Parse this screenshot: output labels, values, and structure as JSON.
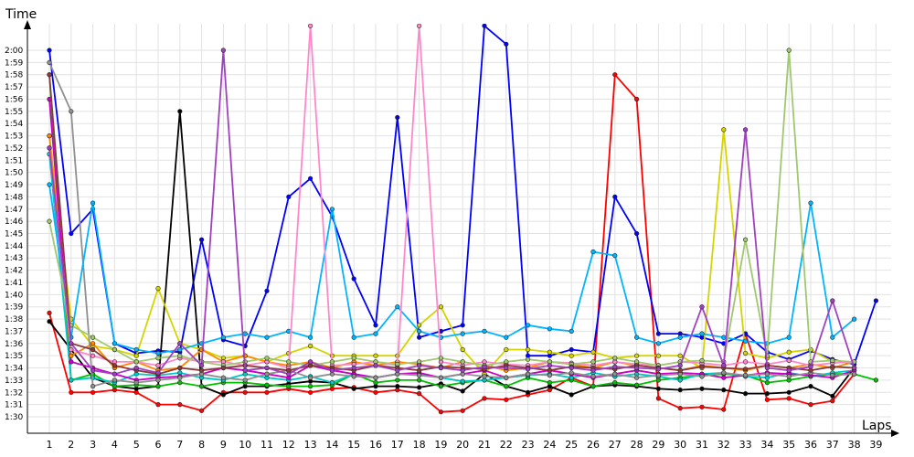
{
  "chart_data": {
    "type": "line",
    "ylabel": "Time",
    "xlabel": "Laps",
    "x": [
      1,
      2,
      3,
      4,
      5,
      6,
      7,
      8,
      9,
      10,
      11,
      12,
      13,
      14,
      15,
      16,
      17,
      18,
      19,
      20,
      21,
      22,
      23,
      24,
      25,
      26,
      27,
      28,
      29,
      30,
      31,
      32,
      33,
      34,
      35,
      36,
      37,
      38,
      39
    ],
    "y_ticks": [
      "1:30",
      "1:31",
      "1:32",
      "1:33",
      "1:34",
      "1:35",
      "1:36",
      "1:37",
      "1:38",
      "1:39",
      "1:40",
      "1:41",
      "1:42",
      "1:43",
      "1:44",
      "1:45",
      "1:46",
      "1:47",
      "1:48",
      "1:49",
      "1:50",
      "1:51",
      "1:52",
      "1:53",
      "1:54",
      "1:55",
      "1:56",
      "1:57",
      "1:58",
      "1:59",
      "2:00"
    ],
    "ylim_seconds": [
      89,
      121
    ],
    "grid": true,
    "series": [
      {
        "color": "#ff0000",
        "values": [
          98.5,
          92,
          92,
          92.2,
          92,
          91,
          91,
          90.5,
          92,
          92,
          92,
          92.3,
          92,
          92.3,
          92.4,
          92,
          92.2,
          91.9,
          90.4,
          90.5,
          91.5,
          91.4,
          91.8,
          92.2,
          93.2,
          92.5,
          118,
          116,
          91.5,
          90.7,
          90.8,
          90.6,
          96.8,
          91.4,
          91.5,
          91,
          91.3,
          93.5,
          null
        ]
      },
      {
        "color": "#0000ff",
        "values": [
          120,
          105,
          107,
          96,
          95.2,
          95.4,
          95.3,
          104.5,
          96.3,
          95.8,
          100.3,
          108,
          109.5,
          106.4,
          101.3,
          97.5,
          114.5,
          96.5,
          97,
          97.5,
          122,
          120.5,
          95,
          95,
          95.5,
          95.3,
          108,
          105,
          96.8,
          96.8,
          96.5,
          96,
          96.8,
          95.3,
          94.7,
          95.4,
          94.7,
          94.3,
          99.5
        ]
      },
      {
        "color": "#000000",
        "values": [
          97.8,
          95.5,
          93.2,
          92.5,
          92.3,
          92.5,
          115,
          92.5,
          91.8,
          92.5,
          92.5,
          92.7,
          92.9,
          92.8,
          92.3,
          92.5,
          92.5,
          92.4,
          92.7,
          92.1,
          93.5,
          92.5,
          92,
          92.5,
          91.8,
          92.5,
          92.6,
          92.5,
          92.3,
          92.2,
          92.3,
          92.2,
          91.9,
          91.9,
          92,
          92.5,
          91.7,
          94,
          null
        ]
      },
      {
        "color": "#00c000",
        "values": [
          118,
          93,
          93.5,
          92.5,
          92.6,
          92.5,
          92.8,
          92.5,
          92.8,
          92.8,
          92.6,
          92.5,
          92.5,
          92.6,
          93.5,
          92.8,
          93,
          93,
          92.5,
          92.8,
          93,
          92.5,
          93.2,
          92.8,
          93,
          92.5,
          92.8,
          92.6,
          93,
          93.2,
          93.4,
          93.5,
          93.4,
          92.8,
          93,
          93.3,
          93.5,
          93.5,
          93
        ]
      },
      {
        "color": "#d4d400",
        "values": [
          113,
          98,
          95.8,
          95.5,
          95,
          100.5,
          96,
          95.5,
          94.8,
          95,
          94.5,
          95.2,
          95.8,
          95,
          95,
          95,
          95,
          97.5,
          99,
          95.5,
          93.5,
          95.5,
          95.5,
          95.3,
          95,
          95.3,
          94.8,
          95,
          95,
          95,
          94,
          113.5,
          95.2,
          94.8,
          95.3,
          95.5,
          94.5,
          null,
          null
        ]
      },
      {
        "color": "#00c8c8",
        "values": [
          111.5,
          93,
          93.2,
          92.8,
          93.5,
          93.4,
          93.6,
          93.2,
          93,
          93.5,
          93.2,
          93,
          93.3,
          92.8,
          93.5,
          93.2,
          93.5,
          93.5,
          93.2,
          92.9,
          93,
          93.2,
          93.4,
          93.5,
          93.2,
          93.6,
          93.3,
          93.5,
          93.3,
          93,
          93.5,
          93.6,
          93.3,
          93.2,
          93.6,
          93.3,
          93.6,
          93.8,
          null
        ]
      },
      {
        "color": "#c800c8",
        "values": [
          116,
          94.5,
          94,
          93.5,
          93,
          93.2,
          93.3,
          93.5,
          94,
          93.8,
          93.5,
          93.2,
          94.2,
          93.8,
          93.5,
          93.2,
          93.5,
          93.6,
          93.2,
          93.5,
          93.8,
          93.2,
          93.5,
          93.8,
          93.5,
          93.2,
          93.5,
          93.8,
          93.5,
          93.6,
          93.5,
          93.2,
          93.4,
          93.6,
          93.5,
          93.4,
          93.2,
          93.8,
          null
        ]
      },
      {
        "color": "#ff8800",
        "values": [
          113,
          95,
          96,
          94,
          94.5,
          93.8,
          94,
          95.5,
          94.5,
          95,
          94.5,
          94.2,
          94.5,
          94,
          94.5,
          94.2,
          94.5,
          94.3,
          94,
          94.5,
          94.2,
          93.8,
          94,
          94.5,
          94.3,
          94,
          94.5,
          94.2,
          94,
          93.8,
          94.2,
          94,
          93.8,
          94.2,
          94,
          94.3,
          94,
          94.5,
          null
        ]
      },
      {
        "color": "#909090",
        "values": [
          119,
          115,
          92.5,
          93,
          92.8,
          93,
          93.2,
          93.5,
          93.2,
          93,
          93.5,
          93.8,
          93.2,
          93.5,
          93.3,
          93.2,
          93.5,
          93.4,
          93.2,
          93.5,
          93.3,
          93.2,
          93.5,
          93.4,
          93.6,
          93.3,
          93.5,
          93.2,
          93.4,
          93.5,
          93.3,
          93.6,
          93.4,
          93.5,
          93.3,
          93.6,
          93.4,
          93.5,
          null
        ]
      },
      {
        "color": "#00b4ff",
        "values": [
          109,
          96.5,
          107.5,
          96,
          95.5,
          95.2,
          95.5,
          96,
          96.5,
          96.8,
          96.5,
          97,
          96.5,
          107,
          96.5,
          96.8,
          99,
          97,
          96.5,
          96.8,
          97,
          96.5,
          97.5,
          97.2,
          97,
          103.5,
          103.2,
          96.5,
          96,
          96.5,
          96.8,
          96.5,
          96.2,
          96,
          96.5,
          107.5,
          96.5,
          98,
          null
        ]
      },
      {
        "color": "#ff88cc",
        "values": [
          112,
          95.5,
          95,
          94.5,
          94.5,
          94.2,
          94.8,
          94.5,
          94.5,
          94.2,
          94.5,
          94,
          122,
          94.2,
          94.3,
          94.5,
          94.2,
          122,
          94.5,
          94.2,
          94.5,
          94.3,
          94.2,
          94.5,
          94.4,
          94.2,
          94.5,
          94.3,
          94.2,
          94.5,
          94.4,
          94.2,
          94.5,
          94.3,
          94.6,
          94.2,
          94.4,
          94.5,
          null
        ]
      },
      {
        "color": "#a0c870",
        "values": [
          106,
          97.5,
          96.5,
          95.5,
          94.5,
          94.8,
          95,
          94.5,
          94.2,
          94.5,
          94.8,
          94.5,
          94.2,
          94.5,
          94.8,
          94.5,
          94.3,
          94.5,
          94.8,
          94.5,
          94.2,
          94.5,
          94.7,
          94.5,
          94.3,
          94.5,
          94.8,
          94.5,
          94.2,
          94.5,
          94.6,
          94.5,
          104.5,
          95,
          120,
          94.5,
          94.6,
          94.5,
          null
        ]
      },
      {
        "color": "#8a3a3a",
        "values": [
          118,
          96,
          95.5,
          94.2,
          93.8,
          93.5,
          94,
          93.8,
          94,
          94.2,
          94,
          93.8,
          94.2,
          94,
          93.8,
          94.2,
          94,
          93.8,
          94.1,
          94,
          93.9,
          94.2,
          94,
          93.8,
          94.1,
          94,
          93.9,
          94.2,
          94,
          93.8,
          94.1,
          94,
          93.9,
          94.2,
          94,
          93.8,
          94.1,
          94,
          null
        ]
      },
      {
        "color": "#a040c0",
        "values": [
          112,
          96,
          93.8,
          93.5,
          94,
          93.6,
          96,
          94.2,
          120,
          93.8,
          94,
          93.5,
          94.5,
          93.8,
          94,
          94.2,
          93.8,
          94.2,
          94,
          93.8,
          94.1,
          94,
          93.9,
          94.2,
          94,
          93.8,
          94.1,
          94,
          93.9,
          94.2,
          99,
          94.2,
          113.5,
          94,
          93.8,
          94.1,
          99.5,
          94,
          null
        ]
      }
    ]
  }
}
